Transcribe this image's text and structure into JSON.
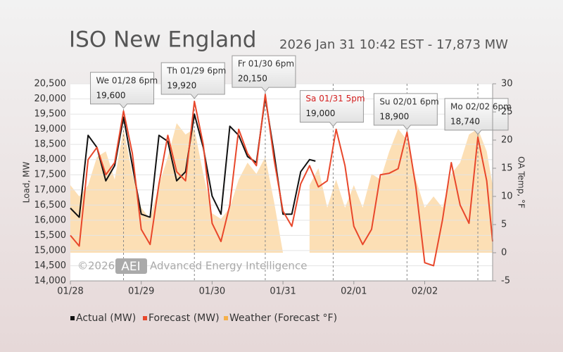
{
  "chart_data": {
    "type": "line",
    "title": "ISO New England",
    "subtitle": "2026 Jan 31 10:42 EST - 17,873 MW",
    "ylabel": "Load, MW",
    "y2label": "OA Temp, °F",
    "xlim": [
      0,
      143
    ],
    "xticks": [
      {
        "value": 0,
        "label": "01/28"
      },
      {
        "value": 24,
        "label": "01/29"
      },
      {
        "value": 48,
        "label": "01/30"
      },
      {
        "value": 72,
        "label": "01/31"
      },
      {
        "value": 96,
        "label": "02/01"
      },
      {
        "value": 120,
        "label": "02/02"
      }
    ],
    "ylim": [
      14000,
      20500
    ],
    "yticks": [
      {
        "value": 14000,
        "label": "14,000"
      },
      {
        "value": 14500,
        "label": "14,500"
      },
      {
        "value": 15000,
        "label": "15,000"
      },
      {
        "value": 15500,
        "label": "15,500"
      },
      {
        "value": 16000,
        "label": "16,000"
      },
      {
        "value": 16500,
        "label": "16,500"
      },
      {
        "value": 17000,
        "label": "17,000"
      },
      {
        "value": 17500,
        "label": "17,500"
      },
      {
        "value": 18000,
        "label": "18,000"
      },
      {
        "value": 18500,
        "label": "18,500"
      },
      {
        "value": 19000,
        "label": "19,000"
      },
      {
        "value": 19500,
        "label": "19,500"
      },
      {
        "value": 20000,
        "label": "20,000"
      },
      {
        "value": 20500,
        "label": "20,500"
      }
    ],
    "y2lim": [
      -5,
      30
    ],
    "y2ticks": [
      -5,
      0,
      5,
      10,
      15,
      20,
      25,
      30
    ],
    "grid": true,
    "legend": "bottom",
    "series": [
      {
        "name": "Weather (Forecast °F)",
        "color": "#fcd9a8",
        "axis": "y2",
        "kind": "area",
        "x": [
          0,
          3,
          6,
          9,
          12,
          15,
          18,
          21,
          24,
          27,
          30,
          33,
          36,
          39,
          42,
          45,
          48,
          51,
          54,
          57,
          60,
          63,
          66,
          69,
          72,
          75,
          78,
          81,
          84,
          87,
          90,
          93,
          96,
          99,
          102,
          105,
          108,
          111,
          114,
          117,
          120,
          123,
          126,
          129,
          132,
          135,
          138,
          141,
          143
        ],
        "values": [
          12,
          10,
          12,
          17,
          18,
          13,
          22,
          14,
          8,
          6,
          12,
          17,
          23,
          21,
          22,
          14,
          7,
          6,
          8,
          13,
          16,
          14,
          17,
          9,
          0,
          null,
          null,
          12,
          15,
          8,
          13,
          8,
          12,
          8,
          14,
          13,
          18,
          22,
          20,
          13,
          8,
          10,
          8,
          14,
          16,
          21,
          22,
          18,
          12
        ]
      },
      {
        "name": "Actual (MW)",
        "color": "#111111",
        "kind": "line",
        "x": [
          0,
          3,
          6,
          9,
          12,
          15,
          18,
          21,
          24,
          27,
          30,
          33,
          36,
          39,
          42,
          45,
          48,
          51,
          54,
          57,
          60,
          63,
          66,
          69,
          72,
          75,
          78,
          81,
          83
        ],
        "values": [
          16400,
          16100,
          18800,
          18400,
          17300,
          17800,
          19400,
          17800,
          16200,
          16100,
          18800,
          18600,
          17300,
          17600,
          19500,
          18400,
          16800,
          16200,
          19100,
          18800,
          18100,
          17900,
          20050,
          18200,
          16200,
          16200,
          17600,
          18000,
          17950
        ]
      },
      {
        "name": "Forecast (MW)",
        "color": "#e8472b",
        "kind": "line",
        "x": [
          0,
          3,
          6,
          9,
          12,
          15,
          18,
          21,
          24,
          27,
          30,
          33,
          36,
          39,
          42,
          45,
          48,
          51,
          54,
          57,
          60,
          63,
          66,
          69,
          72,
          75,
          78,
          81,
          84,
          87,
          90,
          93,
          96,
          99,
          102,
          105,
          108,
          111,
          114,
          117,
          120,
          123,
          126,
          129,
          132,
          135,
          138,
          141,
          143
        ],
        "values": [
          15500,
          15150,
          18000,
          18400,
          17500,
          17900,
          19600,
          18200,
          15700,
          15200,
          17200,
          18800,
          17600,
          17300,
          19920,
          18500,
          15900,
          15300,
          16500,
          19000,
          18200,
          17800,
          20150,
          18000,
          16300,
          15800,
          17200,
          17800,
          17100,
          17300,
          19000,
          17800,
          15800,
          15200,
          15700,
          17500,
          17550,
          17700,
          18900,
          17100,
          14600,
          14500,
          16000,
          17900,
          16500,
          15900,
          18740,
          17300,
          15300
        ]
      }
    ],
    "annotations": [
      {
        "x": 18,
        "title": "We 01/28 6pm",
        "value": 19600,
        "label": "19,600",
        "color": "#333333"
      },
      {
        "x": 42,
        "title": "Th 01/29 6pm",
        "value": 19920,
        "label": "19,920",
        "color": "#333333"
      },
      {
        "x": 66,
        "title": "Fr 01/30 6pm",
        "value": 20150,
        "label": "20,150",
        "color": "#333333"
      },
      {
        "x": 89,
        "title": "Sa 01/31 5pm",
        "value": 19000,
        "label": "19,000",
        "color": "#d42020"
      },
      {
        "x": 114,
        "title": "Su 02/01 6pm",
        "value": 18900,
        "label": "18,900",
        "color": "#333333"
      },
      {
        "x": 138,
        "title": "Mo 02/02 6pm",
        "value": 18740,
        "label": "18,740",
        "color": "#333333"
      }
    ]
  },
  "watermark": {
    "copyright": "©2026",
    "logo": "AEI",
    "text": "Advanced Energy Intelligence"
  }
}
